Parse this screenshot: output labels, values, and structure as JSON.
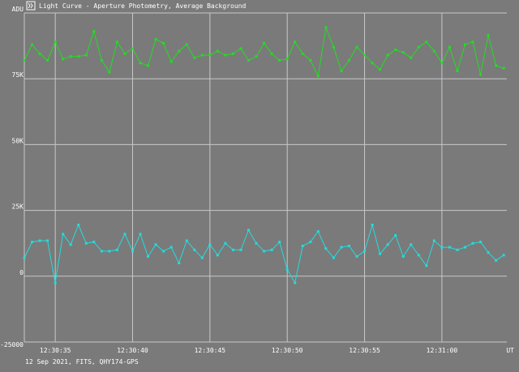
{
  "window": {
    "title": "Light Curve - Aperture Photometry, Average Background",
    "icon": "app-icon"
  },
  "footer": {
    "caption": "12 Sep 2021, FITS, QHY174-GPS"
  },
  "colors": {
    "background": "#7a7a7a",
    "grid": "#c8c8c8",
    "text": "#ffffff",
    "series1": "#22dd22",
    "series2": "#22dddd"
  },
  "chart_data": {
    "type": "line",
    "title": "Light Curve - Aperture Photometry, Average Background",
    "xlabel": "UT",
    "ylabel": "ADU",
    "grid": true,
    "xlim": [
      0,
      31.2
    ],
    "ylim": [
      -25000,
      100000
    ],
    "y_ticks": [
      {
        "value": 100000,
        "label": "ADU"
      },
      {
        "value": 75000,
        "label": "75K"
      },
      {
        "value": 50000,
        "label": "50K"
      },
      {
        "value": 25000,
        "label": "25K"
      },
      {
        "value": 0,
        "label": "0"
      },
      {
        "value": -25000,
        "label": "-25000"
      }
    ],
    "x_ticks": [
      {
        "value": 2,
        "label": "12:30:35"
      },
      {
        "value": 7,
        "label": "12:30:40"
      },
      {
        "value": 12,
        "label": "12:30:45"
      },
      {
        "value": 17,
        "label": "12:30:50"
      },
      {
        "value": 22,
        "label": "12:30:55"
      },
      {
        "value": 27,
        "label": "12:31:00"
      },
      {
        "value": 31.2,
        "label": "UT"
      }
    ],
    "x": [
      0.0,
      0.5,
      1.0,
      1.5,
      2.0,
      2.5,
      3.0,
      3.5,
      4.0,
      4.5,
      5.0,
      5.5,
      6.0,
      6.5,
      7.0,
      7.5,
      8.0,
      8.5,
      9.0,
      9.5,
      10.0,
      10.5,
      11.0,
      11.5,
      12.0,
      12.5,
      13.0,
      13.5,
      14.0,
      14.5,
      15.0,
      15.5,
      16.0,
      16.5,
      17.0,
      17.5,
      18.0,
      18.5,
      19.0,
      19.5,
      20.0,
      20.5,
      21.0,
      21.5,
      22.0,
      22.5,
      23.0,
      23.5,
      24.0,
      24.5,
      25.0,
      25.5,
      26.0,
      26.5,
      27.0,
      27.5,
      28.0,
      28.5,
      29.0,
      29.5,
      30.0,
      30.5,
      31.0
    ],
    "series": [
      {
        "values": [
          82000,
          88000,
          84500,
          82000,
          89000,
          82500,
          83500,
          83500,
          84000,
          93000,
          82000,
          77500,
          89000,
          84500,
          86500,
          81000,
          80000,
          90000,
          88500,
          81500,
          85500,
          88000,
          83000,
          84000,
          84000,
          85500,
          84000,
          84500,
          86500,
          82000,
          83500,
          88500,
          84500,
          82000,
          82500,
          89000,
          84500,
          82000,
          76000,
          94500,
          87000,
          78000,
          82000,
          87000,
          84000,
          81000,
          78500,
          84000,
          86000,
          85000,
          83000,
          87000,
          89000,
          85500,
          81000,
          87000,
          78000,
          88000,
          89000,
          76500,
          91500,
          80000,
          79000
        ]
      },
      {
        "values": [
          7000,
          13000,
          13500,
          13500,
          -2500,
          16000,
          12000,
          19500,
          12500,
          13000,
          9500,
          9500,
          10000,
          16000,
          9500,
          16000,
          7500,
          12000,
          9500,
          11000,
          5000,
          13500,
          10000,
          7000,
          12000,
          8000,
          12500,
          10000,
          10000,
          17500,
          12500,
          9500,
          10000,
          13000,
          2500,
          -2500,
          11500,
          13000,
          17000,
          10500,
          7000,
          11000,
          11500,
          7500,
          9500,
          19500,
          8500,
          12000,
          15500,
          7500,
          12000,
          8000,
          4000,
          13500,
          11000,
          11000,
          10000,
          11000,
          12500,
          13000,
          9000,
          6000,
          8000
        ]
      }
    ]
  }
}
